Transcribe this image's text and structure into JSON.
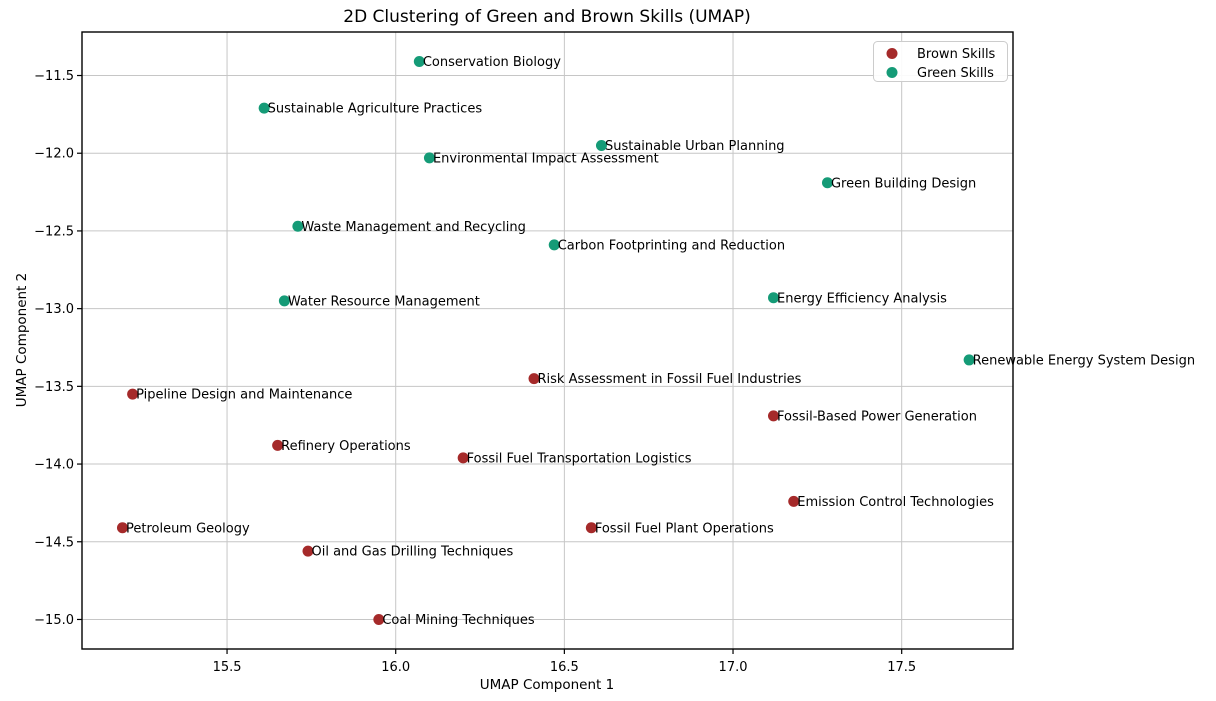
{
  "chart_data": {
    "type": "scatter",
    "title": "2D Clustering of Green and Brown Skills (UMAP)",
    "xlabel": "UMAP Component 1",
    "ylabel": "UMAP Component 2",
    "xlim": [
      15.07,
      17.83
    ],
    "ylim": [
      -15.19,
      -11.22
    ],
    "xticks": [
      15.5,
      16.0,
      16.5,
      17.0,
      17.5
    ],
    "xtick_labels": [
      "15.5",
      "16.0",
      "16.5",
      "17.0",
      "17.5"
    ],
    "yticks": [
      -11.5,
      -12.0,
      -12.5,
      -13.0,
      -13.5,
      -14.0,
      -14.5,
      -15.0
    ],
    "ytick_labels": [
      "−11.5",
      "−12.0",
      "−12.5",
      "−13.0",
      "−13.5",
      "−14.0",
      "−14.5",
      "−15.0"
    ],
    "grid": true,
    "grid_color": "#c6c6c6",
    "spine_color": "#000000",
    "legend": {
      "position": "upper right",
      "items": [
        "Brown Skills",
        "Green Skills"
      ],
      "border_color": "#cccccc",
      "background": "#ffffff"
    },
    "series": [
      {
        "name": "Brown Skills",
        "color": "#A52A2A",
        "points": [
          {
            "label": "Risk Assessment in Fossil Fuel Industries",
            "x": 16.41,
            "y": -13.45
          },
          {
            "label": "Pipeline Design and Maintenance",
            "x": 15.22,
            "y": -13.55
          },
          {
            "label": "Fossil-Based Power Generation",
            "x": 17.12,
            "y": -13.69
          },
          {
            "label": "Refinery Operations",
            "x": 15.65,
            "y": -13.88
          },
          {
            "label": "Fossil Fuel Transportation Logistics",
            "x": 16.2,
            "y": -13.96
          },
          {
            "label": "Emission Control Technologies",
            "x": 17.18,
            "y": -14.24
          },
          {
            "label": "Petroleum Geology",
            "x": 15.19,
            "y": -14.41
          },
          {
            "label": "Fossil Fuel Plant Operations",
            "x": 16.58,
            "y": -14.41
          },
          {
            "label": "Oil and Gas Drilling Techniques",
            "x": 15.74,
            "y": -14.56
          },
          {
            "label": "Coal Mining Techniques",
            "x": 15.95,
            "y": -15.0
          }
        ]
      },
      {
        "name": "Green Skills",
        "color": "#159B77",
        "points": [
          {
            "label": "Conservation Biology",
            "x": 16.07,
            "y": -11.41
          },
          {
            "label": "Sustainable Agriculture Practices",
            "x": 15.61,
            "y": -11.71
          },
          {
            "label": "Sustainable Urban Planning",
            "x": 16.61,
            "y": -11.95
          },
          {
            "label": "Environmental Impact Assessment",
            "x": 16.1,
            "y": -12.03
          },
          {
            "label": "Green Building Design",
            "x": 17.28,
            "y": -12.19
          },
          {
            "label": "Waste Management and Recycling",
            "x": 15.71,
            "y": -12.47
          },
          {
            "label": "Carbon Footprinting and Reduction",
            "x": 16.47,
            "y": -12.59
          },
          {
            "label": "Water Resource Management",
            "x": 15.67,
            "y": -12.95
          },
          {
            "label": "Energy Efficiency Analysis",
            "x": 17.12,
            "y": -12.93
          },
          {
            "label": "Renewable Energy System Design",
            "x": 17.7,
            "y": -13.33
          }
        ]
      }
    ]
  }
}
